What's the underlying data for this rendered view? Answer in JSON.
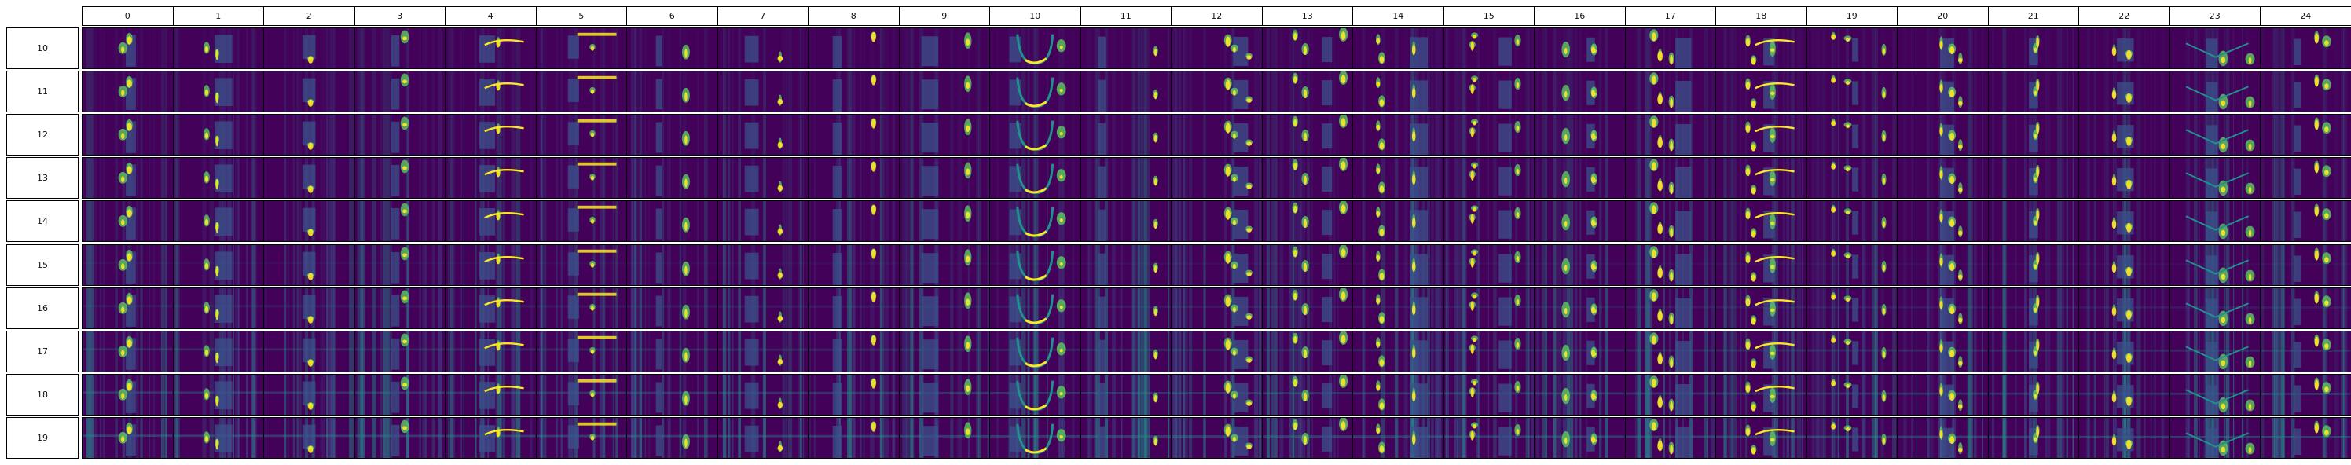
{
  "grid": {
    "column_labels": [
      "0",
      "1",
      "2",
      "3",
      "4",
      "5",
      "6",
      "7",
      "8",
      "9",
      "10",
      "11",
      "12",
      "13",
      "14",
      "15",
      "16",
      "17",
      "18",
      "19",
      "20",
      "21",
      "22",
      "23",
      "24"
    ],
    "row_labels": [
      "10",
      "11",
      "12",
      "13",
      "14",
      "15",
      "16",
      "17",
      "18",
      "19"
    ]
  },
  "colormap": {
    "name": "viridis",
    "low": "#440154",
    "mid_low": "#3b528b",
    "mid": "#21918c",
    "mid_high": "#5ec962",
    "high": "#fde725"
  }
}
